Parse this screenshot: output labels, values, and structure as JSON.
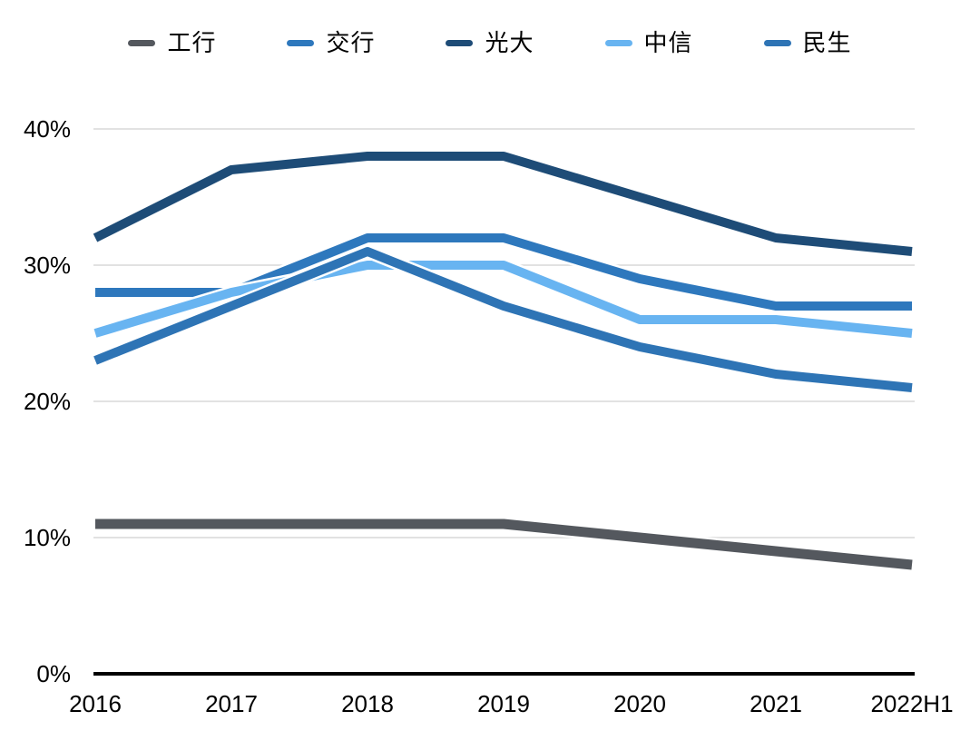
{
  "chart_data": {
    "type": "line",
    "title": "",
    "xlabel": "",
    "ylabel": "",
    "x_labels": [
      "2016",
      "2017",
      "2018",
      "2019",
      "2020",
      "2021",
      "2022H1"
    ],
    "y_ticks": [
      0,
      10,
      20,
      30,
      40
    ],
    "y_tick_labels": [
      "0%",
      "10%",
      "20%",
      "30%",
      "40%"
    ],
    "ylim": [
      0,
      40
    ],
    "grid": "horizontal",
    "legend_position": "top",
    "series": [
      {
        "name": "工行",
        "color": "#54585E",
        "values": [
          11,
          11,
          11,
          11,
          10,
          9,
          8
        ]
      },
      {
        "name": "交行",
        "color": "#2E78BD",
        "values": [
          28,
          28,
          32,
          32,
          29,
          27,
          27
        ]
      },
      {
        "name": "光大",
        "color": "#1E4C77",
        "values": [
          32,
          37,
          38,
          38,
          35,
          32,
          31
        ]
      },
      {
        "name": "中信",
        "color": "#68B4F1",
        "values": [
          25,
          28,
          30,
          30,
          26,
          26,
          25
        ]
      },
      {
        "name": "民生",
        "color": "#2E74B5",
        "values": [
          23,
          27,
          31,
          27,
          24,
          22,
          21
        ]
      }
    ],
    "colors": {
      "gridline": "#D8D8D8",
      "axis": "#000000",
      "background": "#FFFFFF"
    }
  }
}
